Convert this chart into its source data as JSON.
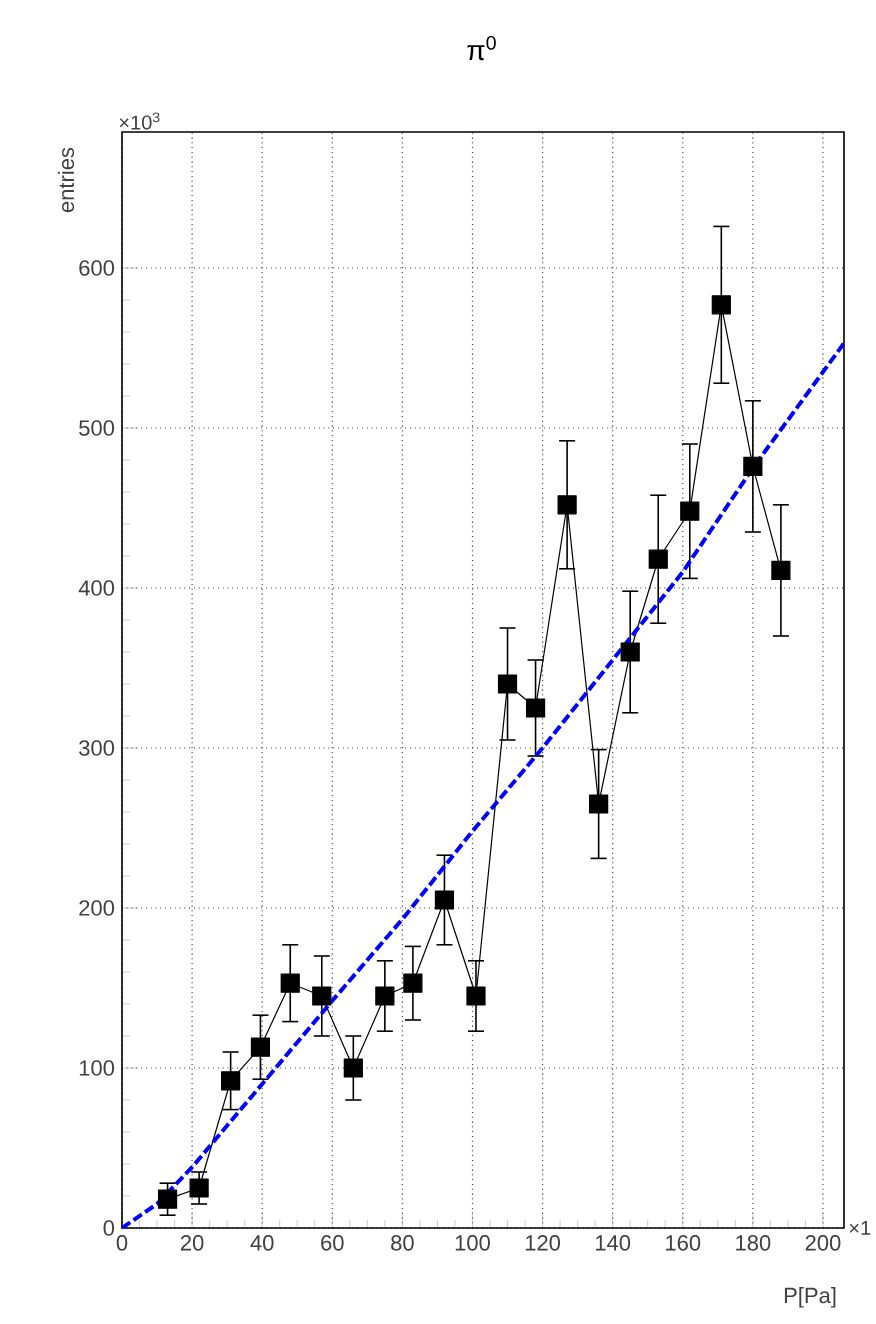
{
  "chart_data": {
    "type": "line",
    "title": "π$^{0}$",
    "xlabel": "P[Pa]",
    "ylabel": "entries",
    "annotations": [
      "×10$^{3}$",
      "×1"
    ],
    "xlim": [
      0,
      206
    ],
    "ylim": [
      0,
      685
    ],
    "xticks": [
      0,
      20,
      40,
      60,
      80,
      100,
      120,
      140,
      160,
      180,
      200
    ],
    "yticks": [
      0,
      100,
      200,
      300,
      400,
      500,
      600
    ],
    "grid": true,
    "series": [
      {
        "marker": "square",
        "line_style": "solid",
        "color": "#000000",
        "x": [
          13,
          22,
          31,
          39.5,
          48,
          57,
          66,
          75,
          83,
          92,
          101,
          110,
          118,
          127,
          136,
          145,
          153,
          162,
          171,
          180,
          188
        ],
        "values": [
          18,
          25,
          92,
          113,
          153,
          145,
          100,
          145,
          153,
          205,
          145,
          340,
          325,
          452,
          265,
          360,
          418,
          448,
          577,
          476,
          411
        ],
        "errors": [
          10,
          10,
          18,
          20,
          24,
          25,
          20,
          22,
          23,
          28,
          22,
          35,
          30,
          40,
          34,
          38,
          40,
          42,
          49,
          41,
          41
        ]
      },
      {
        "marker": "none",
        "line_style": "dashed",
        "color": "#0000ff",
        "x": [
          0,
          10,
          20,
          40,
          60,
          80,
          100,
          120,
          140,
          160,
          180,
          206
        ],
        "values": [
          0,
          15,
          38,
          90,
          142,
          193,
          248,
          300,
          355,
          410,
          475,
          553
        ]
      }
    ]
  }
}
